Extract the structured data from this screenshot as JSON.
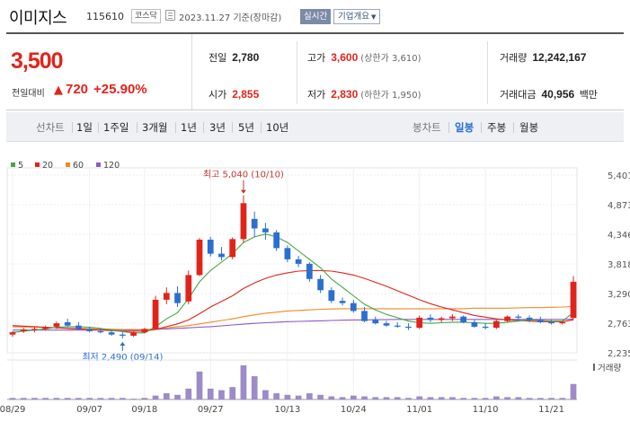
{
  "header": {
    "name": "이미지스",
    "code": "115610",
    "market": "코스닥",
    "date": "2023.11.27",
    "date_suffix": "기준(장마감)",
    "realtime_label": "실시간",
    "overview_label": "기업개요",
    "calendar_icon": "calendar-icon"
  },
  "price": {
    "current": "3,500",
    "change_label": "전일대비",
    "change_value": "720",
    "change_pct": "+25.90%",
    "up_icon": "up-triangle-icon",
    "up_color": "#e2231a",
    "down_color": "#2a6fd1"
  },
  "stats": {
    "prev_close": {
      "label": "전일",
      "value": "2,780"
    },
    "high": {
      "label": "고가",
      "value": "3,600",
      "sub": "(상한가 3,610)"
    },
    "volume": {
      "label": "거래량",
      "value": "12,242,167"
    },
    "open": {
      "label": "시가",
      "value": "2,855"
    },
    "low": {
      "label": "저가",
      "value": "2,830",
      "sub": "(하한가 1,950)"
    },
    "amount": {
      "label": "거래대금",
      "value": "40,956",
      "unit": "백만"
    }
  },
  "toolbar": {
    "line_chart_label": "선차트",
    "periods": [
      "1일",
      "1주일",
      "3개월",
      "1년",
      "3년",
      "5년",
      "10년"
    ],
    "candle_label": "봉차트",
    "candle_periods": [
      "일봉",
      "주봉",
      "월봉"
    ],
    "active_candle": "일봉"
  },
  "chart_data": {
    "type": "candlestick",
    "legend": [
      {
        "name": "5",
        "color": "#43a843"
      },
      {
        "name": "20",
        "color": "#e2231a"
      },
      {
        "name": "60",
        "color": "#f08a24"
      },
      {
        "name": "120",
        "color": "#8e58c9"
      }
    ],
    "y_ticks": [
      "5,401",
      "4,873",
      "4,346",
      "3,818",
      "3,290",
      "2,763",
      "2,235"
    ],
    "ylim": [
      2235,
      5401
    ],
    "x_ticks": [
      {
        "index": 0,
        "label": "08/29"
      },
      {
        "index": 7,
        "label": "09/07"
      },
      {
        "index": 12,
        "label": "09/18"
      },
      {
        "index": 18,
        "label": "09/27"
      },
      {
        "index": 25,
        "label": "10/13"
      },
      {
        "index": 31,
        "label": "10/24"
      },
      {
        "index": 37,
        "label": "11/01"
      },
      {
        "index": 43,
        "label": "11/10"
      },
      {
        "index": 49,
        "label": "11/21"
      }
    ],
    "annotations": [
      {
        "text": "최고 5,040 (10/10)",
        "index": 21,
        "value": 5040,
        "kind": "high",
        "color": "#c0392b"
      },
      {
        "text": "최저 2,490 (09/14)",
        "index": 10,
        "value": 2490,
        "kind": "low",
        "color": "#2a6fd1"
      }
    ],
    "volume_label": "거래량",
    "candles": [
      {
        "o": 2560,
        "h": 2620,
        "l": 2520,
        "c": 2600
      },
      {
        "o": 2620,
        "h": 2680,
        "l": 2590,
        "c": 2650
      },
      {
        "o": 2640,
        "h": 2700,
        "l": 2600,
        "c": 2660
      },
      {
        "o": 2660,
        "h": 2720,
        "l": 2630,
        "c": 2690
      },
      {
        "o": 2700,
        "h": 2790,
        "l": 2660,
        "c": 2760
      },
      {
        "o": 2780,
        "h": 2840,
        "l": 2690,
        "c": 2720
      },
      {
        "o": 2720,
        "h": 2780,
        "l": 2640,
        "c": 2660
      },
      {
        "o": 2660,
        "h": 2700,
        "l": 2600,
        "c": 2620
      },
      {
        "o": 2620,
        "h": 2670,
        "l": 2580,
        "c": 2600
      },
      {
        "o": 2600,
        "h": 2640,
        "l": 2540,
        "c": 2560
      },
      {
        "o": 2560,
        "h": 2600,
        "l": 2490,
        "c": 2540
      },
      {
        "o": 2540,
        "h": 2620,
        "l": 2520,
        "c": 2600
      },
      {
        "o": 2600,
        "h": 2680,
        "l": 2580,
        "c": 2660
      },
      {
        "o": 2660,
        "h": 3250,
        "l": 2650,
        "c": 3180
      },
      {
        "o": 3180,
        "h": 3400,
        "l": 3100,
        "c": 3300
      },
      {
        "o": 3300,
        "h": 3420,
        "l": 3050,
        "c": 3120
      },
      {
        "o": 3150,
        "h": 3700,
        "l": 3100,
        "c": 3620
      },
      {
        "o": 3620,
        "h": 4280,
        "l": 3600,
        "c": 4250
      },
      {
        "o": 4250,
        "h": 4300,
        "l": 3950,
        "c": 4000
      },
      {
        "o": 4000,
        "h": 4120,
        "l": 3880,
        "c": 3940
      },
      {
        "o": 3940,
        "h": 4290,
        "l": 3900,
        "c": 4260
      },
      {
        "o": 4260,
        "h": 5040,
        "l": 4200,
        "c": 4900
      },
      {
        "o": 4620,
        "h": 4750,
        "l": 4300,
        "c": 4450
      },
      {
        "o": 4450,
        "h": 4550,
        "l": 4250,
        "c": 4380
      },
      {
        "o": 4380,
        "h": 4420,
        "l": 4050,
        "c": 4100
      },
      {
        "o": 4100,
        "h": 4150,
        "l": 3850,
        "c": 3900
      },
      {
        "o": 3900,
        "h": 3960,
        "l": 3760,
        "c": 3820
      },
      {
        "o": 3820,
        "h": 3850,
        "l": 3500,
        "c": 3550
      },
      {
        "o": 3550,
        "h": 3620,
        "l": 3300,
        "c": 3350
      },
      {
        "o": 3350,
        "h": 3400,
        "l": 3120,
        "c": 3160
      },
      {
        "o": 3160,
        "h": 3220,
        "l": 3080,
        "c": 3120
      },
      {
        "o": 3120,
        "h": 3180,
        "l": 2950,
        "c": 2980
      },
      {
        "o": 2980,
        "h": 3050,
        "l": 2780,
        "c": 2800
      },
      {
        "o": 2820,
        "h": 2880,
        "l": 2740,
        "c": 2760
      },
      {
        "o": 2760,
        "h": 2800,
        "l": 2700,
        "c": 2720
      },
      {
        "o": 2720,
        "h": 2780,
        "l": 2680,
        "c": 2700
      },
      {
        "o": 2700,
        "h": 2760,
        "l": 2640,
        "c": 2680
      },
      {
        "o": 2680,
        "h": 2900,
        "l": 2660,
        "c": 2860
      },
      {
        "o": 2860,
        "h": 2920,
        "l": 2780,
        "c": 2820
      },
      {
        "o": 2820,
        "h": 2880,
        "l": 2780,
        "c": 2850
      },
      {
        "o": 2850,
        "h": 2920,
        "l": 2800,
        "c": 2880
      },
      {
        "o": 2880,
        "h": 2900,
        "l": 2760,
        "c": 2780
      },
      {
        "o": 2780,
        "h": 2820,
        "l": 2680,
        "c": 2700
      },
      {
        "o": 2700,
        "h": 2760,
        "l": 2650,
        "c": 2680
      },
      {
        "o": 2680,
        "h": 2820,
        "l": 2660,
        "c": 2800
      },
      {
        "o": 2800,
        "h": 2900,
        "l": 2780,
        "c": 2880
      },
      {
        "o": 2880,
        "h": 2920,
        "l": 2800,
        "c": 2860
      },
      {
        "o": 2860,
        "h": 2900,
        "l": 2780,
        "c": 2820
      },
      {
        "o": 2820,
        "h": 2880,
        "l": 2760,
        "c": 2780
      },
      {
        "o": 2780,
        "h": 2820,
        "l": 2740,
        "c": 2760
      },
      {
        "o": 2760,
        "h": 2800,
        "l": 2740,
        "c": 2780
      },
      {
        "o": 2855,
        "h": 3600,
        "l": 2830,
        "c": 3500
      }
    ],
    "ma5": [
      2600,
      2620,
      2640,
      2660,
      2690,
      2700,
      2700,
      2690,
      2670,
      2640,
      2610,
      2590,
      2590,
      2700,
      2840,
      2950,
      3200,
      3500,
      3700,
      3850,
      4000,
      4200,
      4300,
      4350,
      4300,
      4200,
      4050,
      3900,
      3750,
      3550,
      3400,
      3250,
      3100,
      3000,
      2920,
      2860,
      2800,
      2770,
      2760,
      2770,
      2780,
      2780,
      2770,
      2760,
      2760,
      2780,
      2800,
      2820,
      2810,
      2800,
      2800,
      2950
    ],
    "ma20": [
      2720,
      2710,
      2700,
      2690,
      2680,
      2670,
      2660,
      2650,
      2640,
      2630,
      2620,
      2620,
      2620,
      2650,
      2700,
      2750,
      2820,
      2930,
      3050,
      3150,
      3250,
      3380,
      3480,
      3560,
      3620,
      3660,
      3690,
      3700,
      3700,
      3690,
      3660,
      3620,
      3560,
      3490,
      3420,
      3340,
      3260,
      3180,
      3110,
      3050,
      3000,
      2950,
      2900,
      2870,
      2840,
      2820,
      2810,
      2800,
      2790,
      2790,
      2790,
      2820
    ],
    "ma60": [
      2700,
      2695,
      2690,
      2685,
      2680,
      2675,
      2670,
      2665,
      2660,
      2655,
      2650,
      2650,
      2650,
      2660,
      2680,
      2700,
      2720,
      2750,
      2780,
      2810,
      2840,
      2880,
      2910,
      2940,
      2960,
      2980,
      2990,
      3000,
      3010,
      3015,
      3020,
      3020,
      3020,
      3020,
      3020,
      3020,
      3020,
      3020,
      3020,
      3020,
      3020,
      3020,
      3030,
      3030,
      3030,
      3030,
      3035,
      3040,
      3040,
      3045,
      3050,
      3060
    ],
    "ma120": [
      2640,
      2640,
      2640,
      2640,
      2640,
      2640,
      2640,
      2640,
      2640,
      2640,
      2640,
      2640,
      2645,
      2650,
      2660,
      2670,
      2680,
      2690,
      2700,
      2715,
      2730,
      2745,
      2760,
      2770,
      2780,
      2790,
      2795,
      2800,
      2805,
      2810,
      2815,
      2820,
      2820,
      2825,
      2825,
      2830,
      2830,
      2830,
      2830,
      2830,
      2830,
      2830,
      2830,
      2830,
      2830,
      2830,
      2830,
      2830,
      2830,
      2830,
      2830,
      2835
    ],
    "volume": [
      2,
      2,
      2,
      2,
      2,
      2,
      2,
      2,
      2,
      2,
      2,
      1,
      2,
      5,
      8,
      6,
      14,
      36,
      14,
      12,
      16,
      44,
      30,
      12,
      8,
      6,
      5,
      8,
      6,
      4,
      3,
      5,
      4,
      3,
      3,
      3,
      2,
      4,
      3,
      3,
      3,
      2,
      2,
      2,
      4,
      3,
      3,
      2,
      2,
      2,
      2,
      20
    ]
  }
}
